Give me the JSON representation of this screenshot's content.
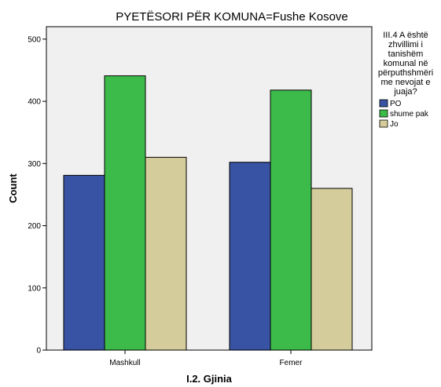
{
  "chart_data": {
    "type": "bar",
    "title": "PYETËSORI PËR KOMUNA=Fushe Kosove",
    "xlabel": "I.2. Gjinia",
    "ylabel": "Count",
    "categories": [
      "Mashkull",
      "Femer"
    ],
    "series": [
      {
        "name": "PO",
        "values": [
          281,
          302
        ],
        "color": "#3953a4"
      },
      {
        "name": "shume pak",
        "values": [
          441,
          418
        ],
        "color": "#3dbb4a"
      },
      {
        "name": "Jo",
        "values": [
          310,
          260
        ],
        "color": "#d4cd9b"
      }
    ],
    "ylim": [
      0,
      520
    ],
    "yticks": [
      0,
      100,
      200,
      300,
      400,
      500
    ],
    "grid": false,
    "legend": {
      "title_lines": [
        "III.4 A është",
        "zhvillimi i",
        "tanishëm",
        "komunal në",
        "përputhshmëri",
        "me nevojat e",
        "juaja?"
      ],
      "placement": "right"
    },
    "plot_background": "#f0f0f0"
  }
}
